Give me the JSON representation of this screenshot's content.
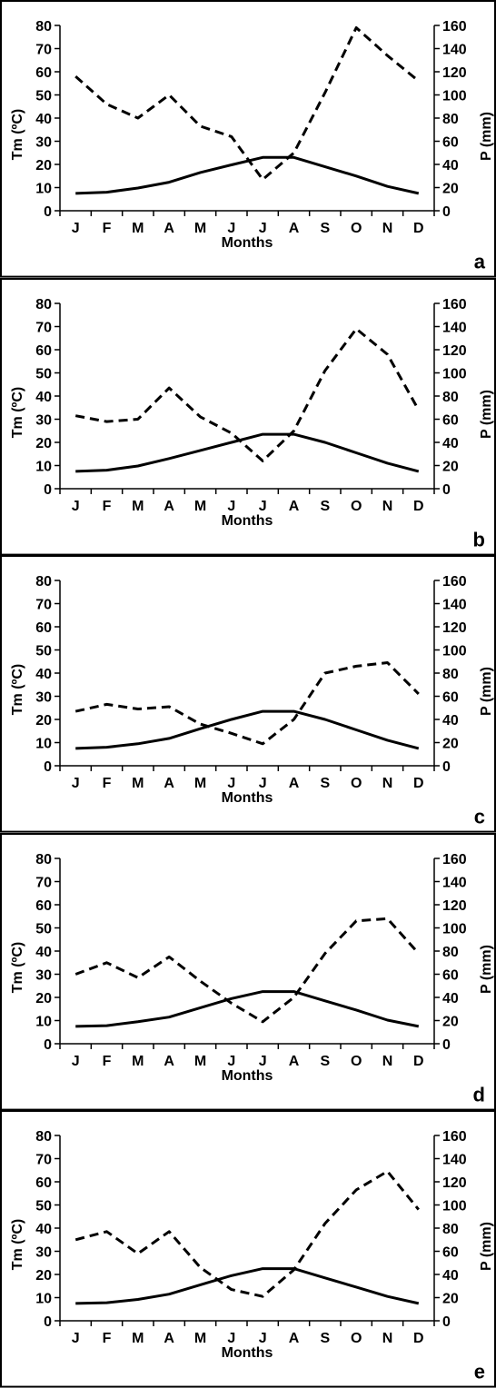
{
  "chart_data": [
    {
      "type": "line",
      "panel_label": "a",
      "categories": [
        "J",
        "F",
        "M",
        "A",
        "M",
        "J",
        "J",
        "A",
        "S",
        "O",
        "N",
        "D"
      ],
      "xlabel": "Months",
      "ylabel_left": "Tm (ºC)",
      "ylabel_right": "P (mm)",
      "ylim_left": [
        0,
        80
      ],
      "ylim_right": [
        0,
        160
      ],
      "yticks_left": [
        0,
        10,
        20,
        30,
        40,
        50,
        60,
        70,
        80
      ],
      "yticks_right": [
        0,
        20,
        40,
        60,
        80,
        100,
        120,
        140,
        160
      ],
      "grid": false,
      "series": [
        {
          "axis": "left",
          "style": "solid",
          "values": [
            7.5,
            8,
            9.8,
            12.3,
            16.5,
            19.8,
            23,
            23,
            19,
            15,
            10.5,
            7.5
          ]
        },
        {
          "axis": "right",
          "style": "dashed",
          "values": [
            116,
            92,
            80,
            100,
            73,
            64,
            27,
            50,
            102,
            158,
            134,
            112
          ]
        }
      ]
    },
    {
      "type": "line",
      "panel_label": "b",
      "categories": [
        "J",
        "F",
        "M",
        "A",
        "M",
        "J",
        "J",
        "A",
        "S",
        "O",
        "N",
        "D"
      ],
      "xlabel": "Months",
      "ylabel_left": "Tm (ºC)",
      "ylabel_right": "P (mm)",
      "ylim_left": [
        0,
        80
      ],
      "ylim_right": [
        0,
        160
      ],
      "yticks_left": [
        0,
        10,
        20,
        30,
        40,
        50,
        60,
        70,
        80
      ],
      "yticks_right": [
        0,
        20,
        40,
        60,
        80,
        100,
        120,
        140,
        160
      ],
      "grid": false,
      "series": [
        {
          "axis": "left",
          "style": "solid",
          "values": [
            7.5,
            8,
            9.8,
            13,
            16.5,
            20,
            23.5,
            23.5,
            20,
            15.5,
            11,
            7.5
          ]
        },
        {
          "axis": "right",
          "style": "dashed",
          "values": [
            63,
            58,
            60,
            87,
            62,
            48,
            24,
            50,
            102,
            138,
            116,
            68
          ]
        }
      ]
    },
    {
      "type": "line",
      "panel_label": "c",
      "categories": [
        "J",
        "F",
        "M",
        "A",
        "M",
        "J",
        "J",
        "A",
        "S",
        "O",
        "N",
        "D"
      ],
      "xlabel": "Months",
      "ylabel_left": "Tm (ºC)",
      "ylabel_right": "P (mm)",
      "ylim_left": [
        0,
        80
      ],
      "ylim_right": [
        0,
        160
      ],
      "yticks_left": [
        0,
        10,
        20,
        30,
        40,
        50,
        60,
        70,
        80
      ],
      "yticks_right": [
        0,
        20,
        40,
        60,
        80,
        100,
        120,
        140,
        160
      ],
      "grid": false,
      "series": [
        {
          "axis": "left",
          "style": "solid",
          "values": [
            7.5,
            8,
            9.5,
            11.8,
            16,
            20,
            23.5,
            23.5,
            20,
            15.5,
            11,
            7.5
          ]
        },
        {
          "axis": "right",
          "style": "dashed",
          "values": [
            47,
            53,
            49,
            51,
            36,
            28,
            19,
            40,
            80,
            86,
            89,
            62
          ]
        }
      ]
    },
    {
      "type": "line",
      "panel_label": "d",
      "categories": [
        "J",
        "F",
        "M",
        "A",
        "M",
        "J",
        "J",
        "A",
        "S",
        "O",
        "N",
        "D"
      ],
      "xlabel": "Months",
      "ylabel_left": "Tm (ºC)",
      "ylabel_right": "P (mm)",
      "ylim_left": [
        0,
        80
      ],
      "ylim_right": [
        0,
        160
      ],
      "yticks_left": [
        0,
        10,
        20,
        30,
        40,
        50,
        60,
        70,
        80
      ],
      "yticks_right": [
        0,
        20,
        40,
        60,
        80,
        100,
        120,
        140,
        160
      ],
      "grid": false,
      "series": [
        {
          "axis": "left",
          "style": "solid",
          "values": [
            7.5,
            7.8,
            9.5,
            11.5,
            15.5,
            19.5,
            22.5,
            22.5,
            18.5,
            14.5,
            10.2,
            7.5
          ]
        },
        {
          "axis": "right",
          "style": "dashed",
          "values": [
            60,
            70,
            57,
            75,
            54,
            35,
            19,
            40,
            78,
            106,
            108,
            78
          ]
        }
      ]
    },
    {
      "type": "line",
      "panel_label": "e",
      "categories": [
        "J",
        "F",
        "M",
        "A",
        "M",
        "J",
        "J",
        "A",
        "S",
        "O",
        "N",
        "D"
      ],
      "xlabel": "Months",
      "ylabel_left": "Tm (ºC)",
      "ylabel_right": "P (mm)",
      "ylim_left": [
        0,
        80
      ],
      "ylim_right": [
        0,
        160
      ],
      "yticks_left": [
        0,
        10,
        20,
        30,
        40,
        50,
        60,
        70,
        80
      ],
      "yticks_right": [
        0,
        20,
        40,
        60,
        80,
        100,
        120,
        140,
        160
      ],
      "grid": false,
      "series": [
        {
          "axis": "left",
          "style": "solid",
          "values": [
            7.5,
            7.8,
            9.2,
            11.5,
            15.5,
            19.5,
            22.5,
            22.5,
            18.5,
            14.5,
            10.5,
            7.5
          ]
        },
        {
          "axis": "right",
          "style": "dashed",
          "values": [
            70,
            77,
            58,
            77,
            46,
            27,
            21,
            44,
            84,
            113,
            129,
            96
          ]
        }
      ]
    }
  ]
}
